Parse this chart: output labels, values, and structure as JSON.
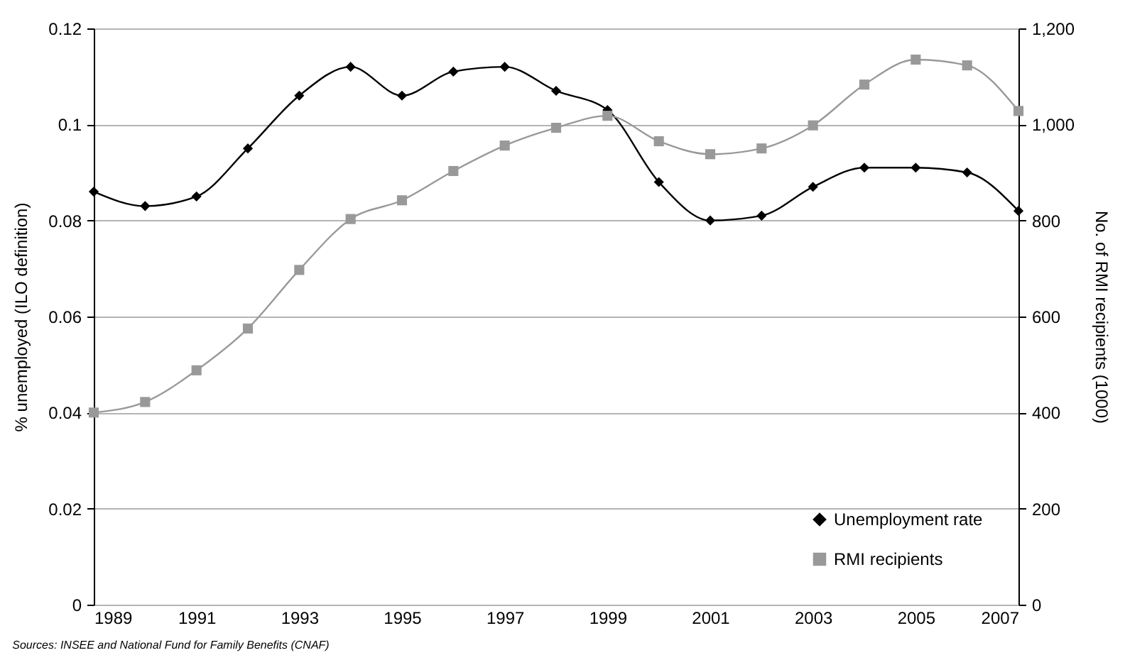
{
  "chart_data": {
    "type": "line",
    "xlabel": null,
    "ylabel": "% unemployed (ILO definition)",
    "y2label": "No. of RMI recipients (1000)",
    "x": [
      1989,
      1990,
      1991,
      1992,
      1993,
      1994,
      1995,
      1996,
      1997,
      1998,
      1999,
      2000,
      2001,
      2002,
      2003,
      2004,
      2005,
      2006,
      2007
    ],
    "series": [
      {
        "name": "Unemployment rate",
        "color": "#000000",
        "marker": "diamond",
        "values": [
          0.086,
          0.083,
          0.085,
          0.095,
          0.106,
          0.112,
          0.106,
          0.111,
          0.112,
          0.107,
          0.103,
          0.088,
          0.08,
          0.081,
          0.087,
          0.091,
          0.091,
          0.09,
          0.082
        ]
      },
      {
        "name": "RMI recipients",
        "color": "#999999",
        "marker": "square",
        "axis": "y2",
        "values": [
          400,
          422,
          488,
          575,
          697,
          803,
          842,
          903,
          956,
          993,
          1018,
          965,
          938,
          950,
          998,
          1083,
          1135,
          1123,
          1028
        ]
      }
    ],
    "xlim": [
      1989,
      2007
    ],
    "xticks": [
      1989,
      1991,
      1993,
      1995,
      1997,
      1999,
      2001,
      2003,
      2005,
      2007
    ],
    "ylim": [
      0,
      0.12
    ],
    "yticks": [
      0,
      0.02,
      0.04,
      0.06,
      0.08,
      0.1,
      0.12
    ],
    "y2lim": [
      0,
      1200
    ],
    "y2ticks": [
      0,
      200,
      400,
      600,
      {
        "value": 800,
        "label": "800"
      },
      {
        "value": 1000,
        "label": "1,000"
      },
      {
        "value": 1200,
        "label": "1,200"
      }
    ],
    "grid": "y",
    "legend": "bottom right",
    "line_style": "solid",
    "annotations": [
      "Sources:  INSEE and National Fund for Family Benefits (CNAF)"
    ]
  }
}
